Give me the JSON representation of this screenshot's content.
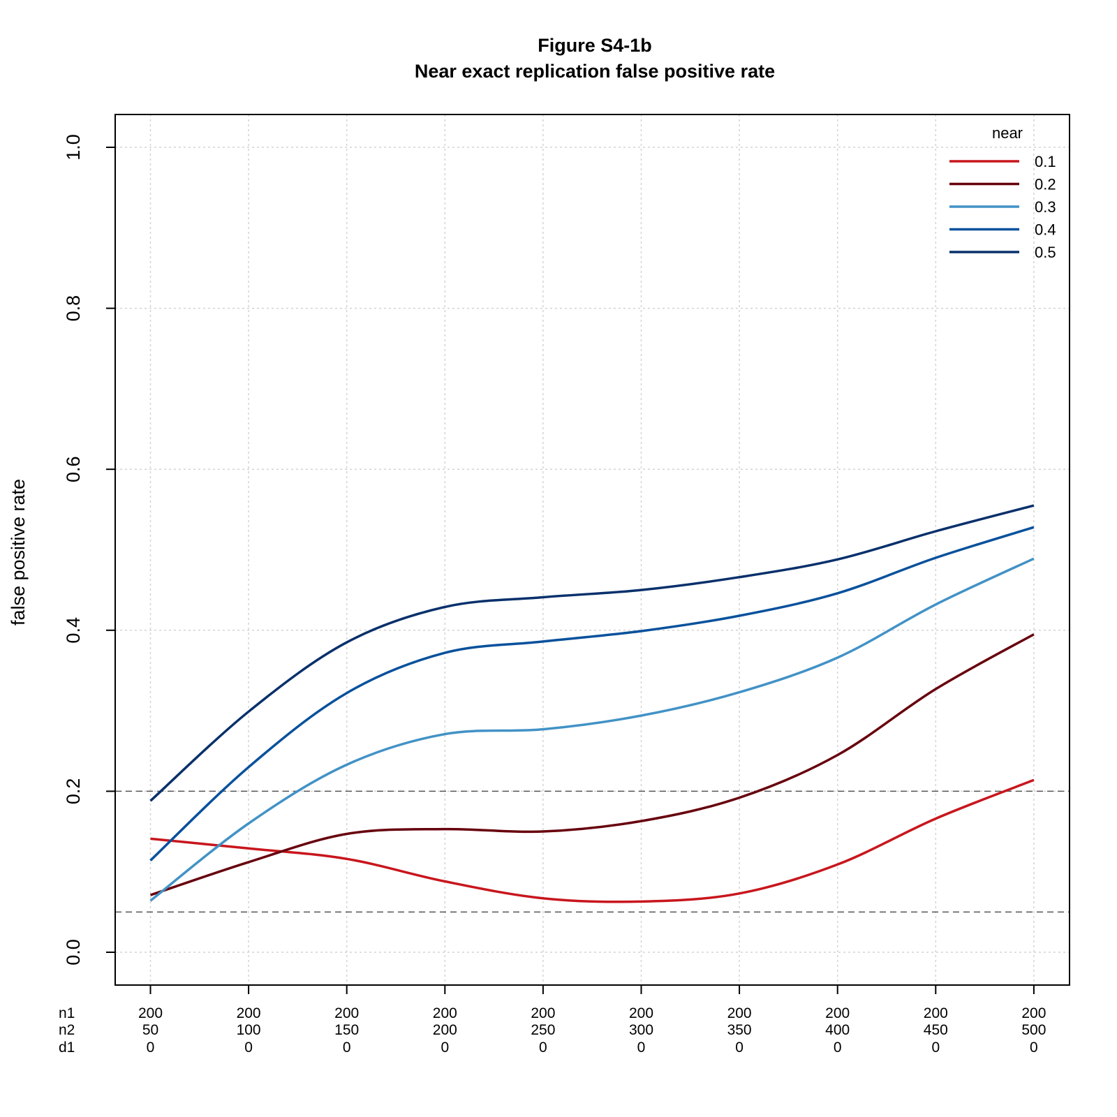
{
  "chart_data": {
    "type": "line",
    "title": "Figure S4-1b",
    "subtitle": "Near exact replication false positive rate",
    "xlabel": "",
    "ylabel": "false positive rate",
    "ylim": [
      0,
      1
    ],
    "yticks": [
      "0.0",
      "0.2",
      "0.4",
      "0.6",
      "0.8",
      "1.0"
    ],
    "x_row_labels": [
      "n1",
      "n2",
      "d1"
    ],
    "x_categories": [
      {
        "n1": "200",
        "n2": "50",
        "d1": "0"
      },
      {
        "n1": "200",
        "n2": "100",
        "d1": "0"
      },
      {
        "n1": "200",
        "n2": "150",
        "d1": "0"
      },
      {
        "n1": "200",
        "n2": "200",
        "d1": "0"
      },
      {
        "n1": "200",
        "n2": "250",
        "d1": "0"
      },
      {
        "n1": "200",
        "n2": "300",
        "d1": "0"
      },
      {
        "n1": "200",
        "n2": "350",
        "d1": "0"
      },
      {
        "n1": "200",
        "n2": "400",
        "d1": "0"
      },
      {
        "n1": "200",
        "n2": "450",
        "d1": "0"
      },
      {
        "n1": "200",
        "n2": "500",
        "d1": "0"
      }
    ],
    "reference_lines": [
      0.2,
      0.05
    ],
    "grid": true,
    "legend": {
      "title": "near",
      "position": "top-right"
    },
    "series": [
      {
        "name": "0.1",
        "color": "#c8161d",
        "values": [
          0.141,
          0.129,
          0.116,
          0.088,
          0.067,
          0.063,
          0.073,
          0.109,
          0.166,
          0.214
        ]
      },
      {
        "name": "0.2",
        "color": "#67000d",
        "values": [
          0.071,
          0.112,
          0.147,
          0.153,
          0.15,
          0.163,
          0.192,
          0.245,
          0.327,
          0.395
        ]
      },
      {
        "name": "0.3",
        "color": "#4292c6",
        "values": [
          0.064,
          0.16,
          0.233,
          0.271,
          0.277,
          0.294,
          0.323,
          0.366,
          0.432,
          0.489
        ]
      },
      {
        "name": "0.4",
        "color": "#08519c",
        "values": [
          0.114,
          0.23,
          0.322,
          0.372,
          0.386,
          0.399,
          0.418,
          0.446,
          0.49,
          0.528
        ]
      },
      {
        "name": "0.5",
        "color": "#08306b",
        "values": [
          0.188,
          0.299,
          0.385,
          0.429,
          0.441,
          0.45,
          0.466,
          0.488,
          0.523,
          0.555
        ]
      }
    ]
  }
}
